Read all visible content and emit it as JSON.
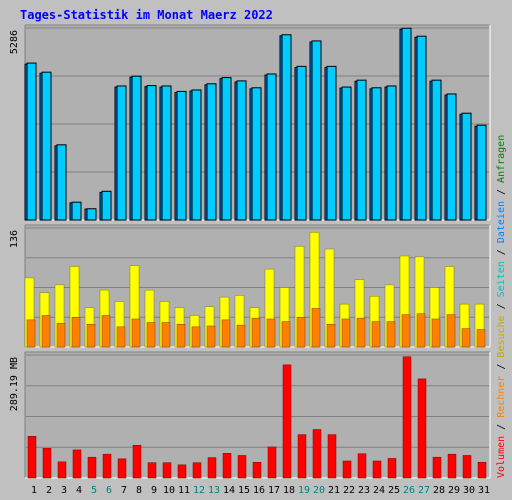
{
  "title": "Tages-Statistik im Monat Maerz 2022",
  "colors": {
    "background": "#c0c0c0",
    "plot_bg": "#b0b0b0",
    "title": "#0000ff",
    "weekday_label": "#000000",
    "weekend_label": "#008080",
    "anfragen": "#00ccff",
    "dateien": "#0080ff",
    "seiten": "#00c0c0",
    "besuche": "#ffff00",
    "rechner": "#ff8000",
    "volumen": "#ff0000"
  },
  "chart_data": {
    "type": "bar",
    "title": "Tages-Statistik im Monat Maerz 2022",
    "categories": [
      "1",
      "2",
      "3",
      "4",
      "5",
      "6",
      "7",
      "8",
      "9",
      "10",
      "11",
      "12",
      "13",
      "14",
      "15",
      "16",
      "17",
      "18",
      "19",
      "20",
      "21",
      "22",
      "23",
      "24",
      "25",
      "26",
      "27",
      "28",
      "29",
      "30",
      "31"
    ],
    "weekend_days": [
      "5",
      "6",
      "12",
      "13",
      "19",
      "20",
      "26",
      "27"
    ],
    "grid": true,
    "panels": [
      {
        "id": "hits",
        "ymax_label": "5286",
        "ymax": 5286,
        "series": [
          {
            "name": "Anfragen",
            "color": "#00ccff",
            "values": [
              4320,
              4070,
              2070,
              490,
              310,
              790,
              3690,
              3960,
              3700,
              3690,
              3540,
              3580,
              3750,
              3920,
              3830,
              3640,
              4020,
              5100,
              4230,
              4930,
              4230,
              3660,
              3850,
              3640,
              3690,
              5280,
              5060,
              3850,
              3470,
              2940,
              2610
            ]
          },
          {
            "name": "Dateien",
            "color": "#0080ff",
            "values": [
              4290,
              4040,
              2040,
              470,
              300,
              760,
              3660,
              3930,
              3670,
              3660,
              3510,
              3550,
              3720,
              3890,
              3800,
              3610,
              3990,
              5070,
              4200,
              4900,
              4200,
              3630,
              3820,
              3610,
              3660,
              5250,
              5030,
              3820,
              3440,
              2910,
              2580
            ]
          }
        ]
      },
      {
        "id": "visits",
        "ymax_label": "136",
        "ymax": 136,
        "series": [
          {
            "name": "Seiten",
            "color": "#00c0c0",
            "values": []
          },
          {
            "name": "Besuche",
            "color": "#ffff00",
            "values": [
              79,
              62,
              71,
              92,
              45,
              65,
              52,
              93,
              65,
              52,
              45,
              36,
              46,
              57,
              59,
              45,
              89,
              68,
              115,
              131,
              112,
              49,
              77,
              58,
              71,
              104,
              103,
              68,
              92,
              49,
              49
            ]
          },
          {
            "name": "Rechner",
            "color": "#ff8000",
            "values": [
              31,
              36,
              27,
              34,
              26,
              36,
              23,
              32,
              28,
              28,
              26,
              23,
              24,
              31,
              25,
              33,
              32,
              29,
              34,
              44,
              26,
              32,
              33,
              29,
              29,
              37,
              38,
              32,
              37,
              21,
              20
            ]
          }
        ]
      },
      {
        "id": "volume",
        "ymax_label": "289.19 MB",
        "ymax": 289.19,
        "series": [
          {
            "name": "Volumen",
            "color": "#ff0000",
            "values": [
              98,
              70,
              38,
              66,
              49,
              56,
              45,
              77,
              36,
              36,
              31,
              36,
              48,
              58,
              53,
              37,
              73,
              266,
              102,
              114,
              102,
              40,
              57,
              40,
              46,
              285,
              233,
              49,
              56,
              53,
              37
            ]
          }
        ]
      }
    ],
    "right_legend": {
      "top": [
        "Anfragen",
        "/",
        "Dateien",
        "/",
        "Seiten",
        "/",
        "Besuche",
        "/",
        "Rechner",
        "/",
        "Volumen"
      ]
    }
  },
  "legend_parts": [
    {
      "text": "Volumen",
      "color": "#ff0000"
    },
    {
      "text": " / ",
      "color": "#000000"
    },
    {
      "text": "Rechner",
      "color": "#ff8000"
    },
    {
      "text": " / ",
      "color": "#000000"
    },
    {
      "text": "Besuche",
      "color": "#c8a800"
    },
    {
      "text": " / ",
      "color": "#000000"
    },
    {
      "text": "Seiten",
      "color": "#00c0c0"
    },
    {
      "text": " / ",
      "color": "#000000"
    },
    {
      "text": "Dateien",
      "color": "#0080ff"
    },
    {
      "text": " / ",
      "color": "#000000"
    },
    {
      "text": "Anfragen",
      "color": "#008000"
    }
  ]
}
